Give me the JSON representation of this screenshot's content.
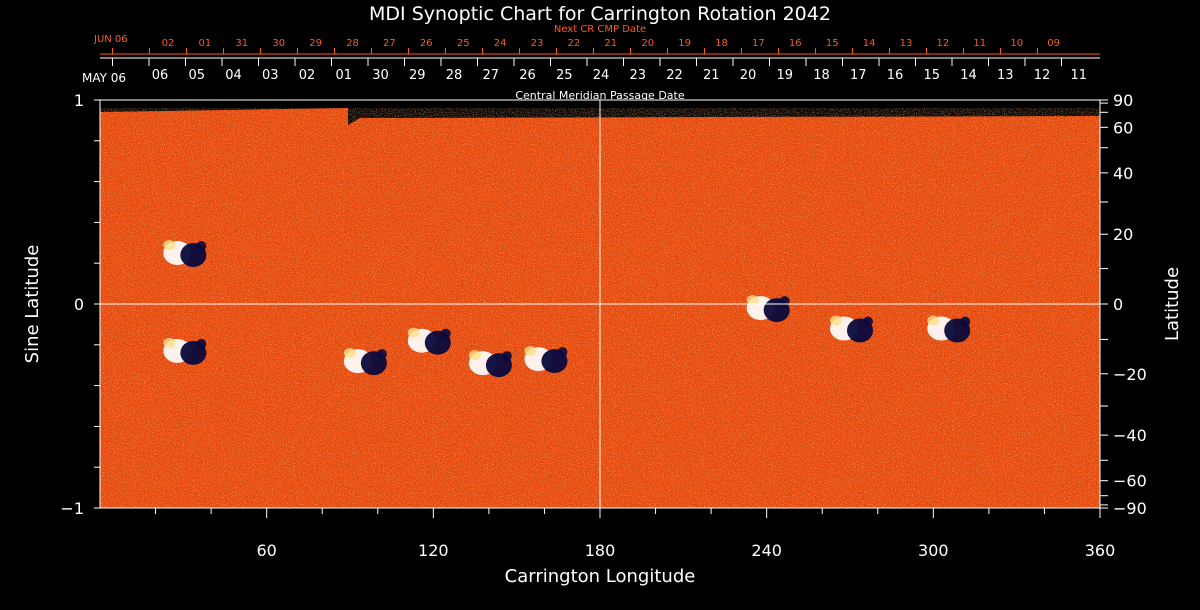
{
  "chart_data": {
    "type": "heatmap",
    "title": "MDI Synoptic Chart for Carrington Rotation 2042",
    "xlabel": "Carrington Longitude",
    "ylabel_left": "Sine Latitude",
    "ylabel_right": "Latitude",
    "xlim": [
      0,
      360
    ],
    "ylim": [
      -1,
      1
    ],
    "x_ticks": [
      60,
      120,
      180,
      240,
      300,
      360
    ],
    "y_ticks_left": [
      {
        "value": 1,
        "label": "1"
      },
      {
        "value": 0,
        "label": "0"
      },
      {
        "value": -1,
        "label": "−1"
      }
    ],
    "y_ticks_right_latitude": [
      {
        "lat": 90,
        "label": "90"
      },
      {
        "lat": 60,
        "label": "60"
      },
      {
        "lat": 40,
        "label": "40"
      },
      {
        "lat": 20,
        "label": "20"
      },
      {
        "lat": 0,
        "label": "0"
      },
      {
        "lat": -20,
        "label": "−20"
      },
      {
        "lat": -40,
        "label": "−40"
      },
      {
        "lat": -60,
        "label": "−60"
      },
      {
        "lat": -90,
        "label": "−90"
      }
    ],
    "cmp_axis": {
      "caption": "Central Meridian Passage Date",
      "start_label": "MAY 06",
      "dates": [
        "06",
        "05",
        "04",
        "03",
        "02",
        "01",
        "30",
        "29",
        "28",
        "27",
        "26",
        "25",
        "24",
        "23",
        "22",
        "21",
        "20",
        "19",
        "18",
        "17",
        "16",
        "15",
        "14",
        "13",
        "12",
        "11"
      ]
    },
    "next_cr_axis": {
      "caption": "Next CR CMP Date",
      "start_label": "JUN 06",
      "dates": [
        "02",
        "01",
        "31",
        "30",
        "29",
        "28",
        "27",
        "26",
        "25",
        "24",
        "23",
        "22",
        "21",
        "20",
        "19",
        "18",
        "17",
        "16",
        "15",
        "14",
        "13",
        "12",
        "11",
        "10",
        "09"
      ]
    },
    "active_regions": [
      {
        "lon": 30,
        "sinlat": 0.25,
        "polarity": "bipolar"
      },
      {
        "lon": 30,
        "sinlat": -0.23,
        "polarity": "bipolar"
      },
      {
        "lon": 95,
        "sinlat": -0.28,
        "polarity": "bipolar"
      },
      {
        "lon": 118,
        "sinlat": -0.18,
        "polarity": "bipolar"
      },
      {
        "lon": 140,
        "sinlat": -0.29,
        "polarity": "bipolar"
      },
      {
        "lon": 160,
        "sinlat": -0.27,
        "polarity": "bipolar"
      },
      {
        "lon": 240,
        "sinlat": -0.02,
        "polarity": "bipolar"
      },
      {
        "lon": 270,
        "sinlat": -0.12,
        "polarity": "bipolar"
      },
      {
        "lon": 305,
        "sinlat": -0.12,
        "polarity": "bipolar"
      }
    ],
    "colors": {
      "background": "#000000",
      "field": "#e8480a",
      "positive": "#ffffff",
      "negative": "#0a0a3c",
      "date_red": "#ff5a1e"
    }
  }
}
